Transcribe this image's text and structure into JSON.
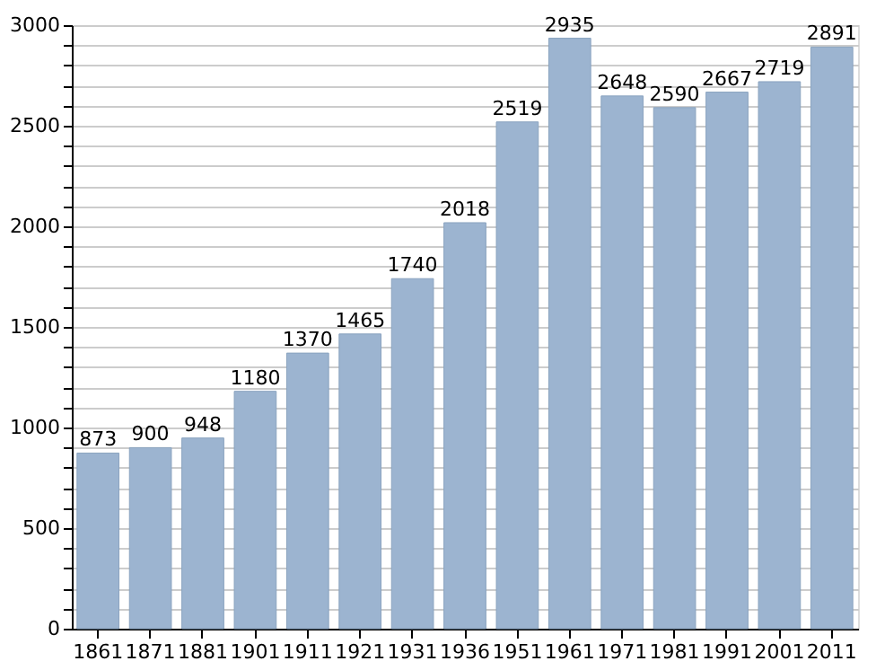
{
  "chart_data": {
    "type": "bar",
    "categories": [
      "1861",
      "1871",
      "1881",
      "1901",
      "1911",
      "1921",
      "1931",
      "1936",
      "1951",
      "1961",
      "1971",
      "1981",
      "1991",
      "2001",
      "2011"
    ],
    "values": [
      873,
      900,
      948,
      1180,
      1370,
      1465,
      1740,
      2018,
      2519,
      2935,
      2648,
      2590,
      2667,
      2719,
      2891
    ],
    "color": "#9cb4d0",
    "data_labels": true,
    "grid": "y",
    "ylim": [
      0,
      3000
    ],
    "yticks": [
      0,
      {
        "value": 100,
        "label": null
      },
      {
        "value": 200,
        "label": null
      },
      {
        "value": 300,
        "label": null
      },
      {
        "value": 400,
        "label": null
      },
      500,
      {
        "value": 600,
        "label": null
      },
      {
        "value": 700,
        "label": null
      },
      {
        "value": 800,
        "label": null
      },
      {
        "value": 900,
        "label": null
      },
      1000,
      {
        "value": 1100,
        "label": null
      },
      {
        "value": 1200,
        "label": null
      },
      {
        "value": 1300,
        "label": null
      },
      {
        "value": 1400,
        "label": null
      },
      1500,
      {
        "value": 1600,
        "label": null
      },
      {
        "value": 1700,
        "label": null
      },
      {
        "value": 1800,
        "label": null
      },
      {
        "value": 1900,
        "label": null
      },
      2000,
      {
        "value": 2100,
        "label": null
      },
      {
        "value": 2200,
        "label": null
      },
      {
        "value": 2300,
        "label": null
      },
      {
        "value": 2400,
        "label": null
      },
      2500,
      {
        "value": 2600,
        "label": null
      },
      {
        "value": 2700,
        "label": null
      },
      {
        "value": 2800,
        "label": null
      },
      {
        "value": 2900,
        "label": null
      },
      3000
    ]
  }
}
